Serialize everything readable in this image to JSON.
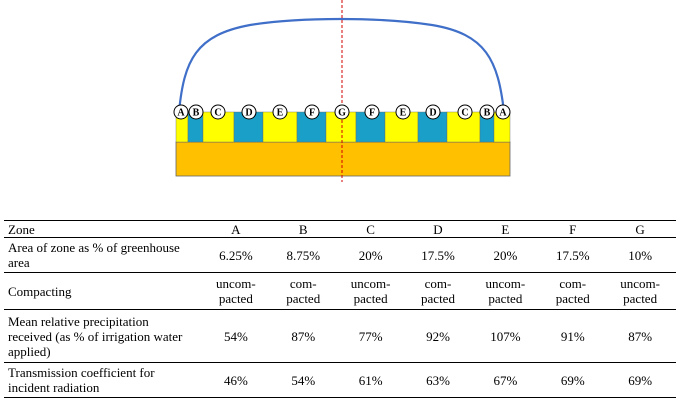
{
  "zone_markers": [
    "A",
    "B",
    "C",
    "D",
    "E",
    "F",
    "G",
    "F",
    "E",
    "D",
    "C",
    "B",
    "A"
  ],
  "colors": {
    "arc": "#3f6fc8",
    "base": "#ffc000",
    "compacted": "#1aa0c8",
    "uncompacted": "#ffff00",
    "centerline": "#d00000"
  },
  "table": {
    "header": [
      "Zone",
      "A",
      "B",
      "C",
      "D",
      "E",
      "F",
      "G"
    ],
    "rows": [
      {
        "label": "Area of zone as % of greenhouse area",
        "values": [
          "6.25%",
          "8.75%",
          "20%",
          "17.5%",
          "20%",
          "17.5%",
          "10%"
        ]
      },
      {
        "label": "Compacting",
        "values": [
          "uncom-\npacted",
          "com-\npacted",
          "uncom-\npacted",
          "com-\npacted",
          "uncom-\npacted",
          "com-\npacted",
          "uncom-\npacted"
        ]
      },
      {
        "label": "Mean relative precipitation received (as % of irrigation water applied)",
        "values": [
          "54%",
          "87%",
          "77%",
          "92%",
          "107%",
          "91%",
          "87%"
        ]
      },
      {
        "label": "Transmission coefficient for incident radiation",
        "values": [
          "46%",
          "54%",
          "61%",
          "63%",
          "67%",
          "69%",
          "69%"
        ]
      }
    ]
  }
}
